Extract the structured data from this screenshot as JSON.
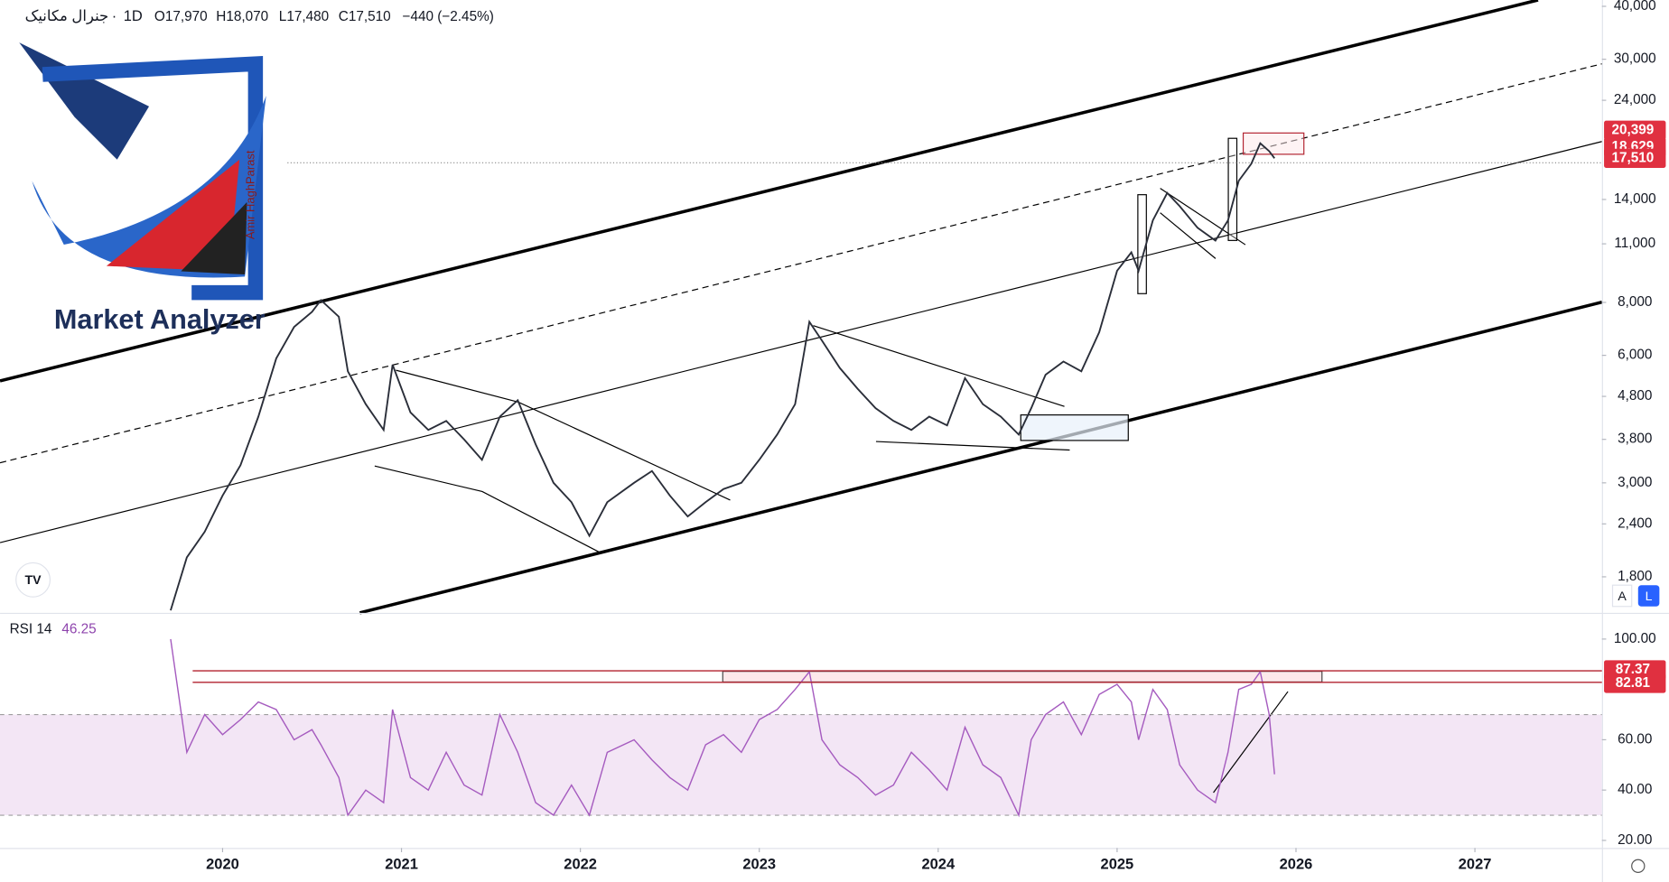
{
  "chart_data": [
    {
      "type": "line",
      "symbol": "جنرال مکانیک",
      "interval": "1D",
      "ohlc_text": [
        "O17,970",
        "H18,070",
        "L17,480",
        "C17,510",
        "−440 (−2.45%)"
      ],
      "log_scale": true,
      "color": "#2a2e39",
      "xlim": [
        2018.756,
        2027.71
      ],
      "xticks": [
        2020,
        2021,
        2022,
        2023,
        2024,
        2025,
        2026,
        2027
      ],
      "ylim": [
        1480,
        41400
      ],
      "yticks": [
        {
          "value": 40000,
          "label": "40,000"
        },
        {
          "value": 30000,
          "label": "30,000"
        },
        {
          "value": 24000,
          "label": "24,000"
        },
        {
          "value": 14000,
          "label": "14,000"
        },
        {
          "value": 11000,
          "label": "11,000"
        },
        {
          "value": 8000,
          "label": "8,000"
        },
        {
          "value": 6000,
          "label": "6,000"
        },
        {
          "value": 4800,
          "label": "4,800"
        },
        {
          "value": 3800,
          "label": "3,800"
        },
        {
          "value": 3000,
          "label": "3,000"
        },
        {
          "value": 2400,
          "label": "2,400"
        },
        {
          "value": 1800,
          "label": "1,800"
        }
      ],
      "price_labels": [
        {
          "value": 20399,
          "label": "20,399"
        },
        {
          "value": 18629,
          "label": "18,629"
        },
        {
          "value": 17510,
          "label": "17,510"
        }
      ],
      "x": [
        2019.71,
        2019.8,
        2019.9,
        2020.0,
        2020.1,
        2020.2,
        2020.3,
        2020.4,
        2020.5,
        2020.55,
        2020.65,
        2020.7,
        2020.8,
        2020.9,
        2020.95,
        2021.05,
        2021.15,
        2021.25,
        2021.35,
        2021.45,
        2021.55,
        2021.65,
        2021.75,
        2021.85,
        2021.95,
        2022.05,
        2022.15,
        2022.3,
        2022.4,
        2022.5,
        2022.6,
        2022.7,
        2022.8,
        2022.9,
        2023.0,
        2023.1,
        2023.2,
        2023.28,
        2023.35,
        2023.45,
        2023.55,
        2023.65,
        2023.75,
        2023.85,
        2023.95,
        2024.05,
        2024.15,
        2024.25,
        2024.35,
        2024.45,
        2024.52,
        2024.6,
        2024.7,
        2024.8,
        2024.9,
        2025.0,
        2025.08,
        2025.12,
        2025.2,
        2025.28,
        2025.35,
        2025.45,
        2025.55,
        2025.62,
        2025.68,
        2025.75,
        2025.8,
        2025.85,
        2025.88
      ],
      "values": [
        1500,
        2000,
        2300,
        2800,
        3300,
        4300,
        5900,
        7000,
        7600,
        8100,
        7400,
        5500,
        4600,
        4000,
        5700,
        4400,
        4000,
        4200,
        3800,
        3400,
        4300,
        4700,
        3700,
        3000,
        2700,
        2250,
        2700,
        3000,
        3200,
        2800,
        2500,
        2700,
        2900,
        3000,
        3400,
        3900,
        4600,
        7200,
        6500,
        5600,
        5000,
        4500,
        4200,
        4000,
        4300,
        4100,
        5300,
        4600,
        4300,
        3900,
        4500,
        5400,
        5800,
        5500,
        6800,
        9500,
        10500,
        9500,
        12500,
        14500,
        13500,
        12000,
        11200,
        12500,
        15500,
        17000,
        19000,
        18200,
        17510
      ]
    },
    {
      "type": "line",
      "title": "RSI 14",
      "current": 46.25,
      "color": "#a55bbf",
      "xlim": [
        2018.756,
        2027.71
      ],
      "ylim": [
        17,
        110
      ],
      "band": [
        30,
        70
      ],
      "yticks": [
        {
          "value": 100,
          "label": "100.00"
        },
        {
          "value": 60,
          "label": "60.00"
        },
        {
          "value": 40,
          "label": "40.00"
        },
        {
          "value": 20,
          "label": "20.00"
        }
      ],
      "levels": [
        87.37,
        82.81
      ],
      "x": [
        2019.71,
        2019.8,
        2019.9,
        2020.0,
        2020.1,
        2020.2,
        2020.3,
        2020.4,
        2020.5,
        2020.55,
        2020.65,
        2020.7,
        2020.8,
        2020.9,
        2020.95,
        2021.05,
        2021.15,
        2021.25,
        2021.35,
        2021.45,
        2021.55,
        2021.65,
        2021.75,
        2021.85,
        2021.95,
        2022.05,
        2022.15,
        2022.3,
        2022.4,
        2022.5,
        2022.6,
        2022.7,
        2022.8,
        2022.9,
        2023.0,
        2023.1,
        2023.2,
        2023.28,
        2023.35,
        2023.45,
        2023.55,
        2023.65,
        2023.75,
        2023.85,
        2023.95,
        2024.05,
        2024.15,
        2024.25,
        2024.35,
        2024.45,
        2024.52,
        2024.6,
        2024.7,
        2024.8,
        2024.9,
        2025.0,
        2025.08,
        2025.12,
        2025.2,
        2025.28,
        2025.35,
        2025.45,
        2025.55,
        2025.62,
        2025.68,
        2025.75,
        2025.8,
        2025.85,
        2025.88
      ],
      "values": [
        100,
        55,
        70,
        62,
        68,
        75,
        72,
        60,
        64,
        58,
        45,
        30,
        40,
        35,
        72,
        45,
        40,
        55,
        42,
        38,
        70,
        55,
        35,
        30,
        42,
        30,
        55,
        60,
        52,
        45,
        40,
        58,
        62,
        55,
        68,
        72,
        80,
        87,
        60,
        50,
        45,
        38,
        42,
        55,
        48,
        40,
        65,
        50,
        45,
        30,
        60,
        70,
        75,
        62,
        78,
        82,
        75,
        60,
        80,
        72,
        50,
        40,
        35,
        55,
        80,
        82,
        87,
        70,
        46.25
      ]
    }
  ],
  "watermark": {
    "brand": "Market Analyzer",
    "author": "Amir HaghParast"
  },
  "controls": [
    "A",
    "L"
  ]
}
